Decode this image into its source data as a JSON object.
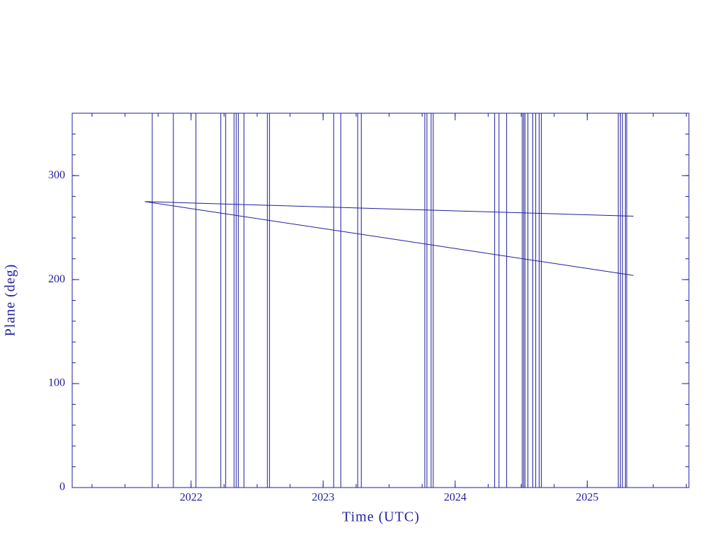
{
  "chart_data": {
    "type": "line",
    "xlabel": "Time (UTC)",
    "ylabel": "Plane (deg)",
    "xlim": [
      2021.1,
      2025.77
    ],
    "ylim": [
      0,
      360
    ],
    "xticks": [
      2022,
      2023,
      2024,
      2025
    ],
    "yticks": [
      0,
      100,
      200,
      300
    ],
    "color": "#1f1f9f",
    "x": [
      2021.65,
      2025.35
    ],
    "series": [
      {
        "color": "#1f1f9f",
        "values": [
          275,
          261
        ]
      },
      {
        "color": "#1f1f9f",
        "values": [
          275,
          204
        ]
      }
    ],
    "vlines": [
      2021.706,
      2021.866,
      2022.037,
      2022.225,
      2022.262,
      2022.326,
      2022.342,
      2022.358,
      2022.401,
      2022.578,
      2022.594,
      2023.08,
      2023.134,
      2023.262,
      2023.289,
      2023.77,
      2023.786,
      2023.818,
      2023.834,
      2024.299,
      2024.332,
      2024.39,
      2024.508,
      2024.519,
      2024.529,
      2024.551,
      2024.588,
      2024.61,
      2024.636,
      2024.652,
      2025.235,
      2025.251,
      2025.267,
      2025.289,
      2025.299
    ]
  }
}
